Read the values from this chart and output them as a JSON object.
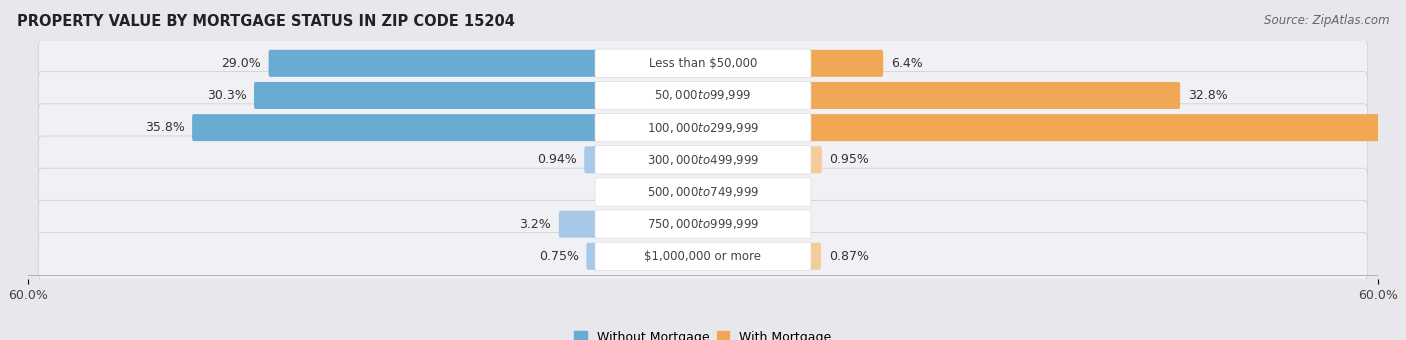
{
  "title": "PROPERTY VALUE BY MORTGAGE STATUS IN ZIP CODE 15204",
  "source": "Source: ZipAtlas.com",
  "categories": [
    "Less than $50,000",
    "$50,000 to $99,999",
    "$100,000 to $299,999",
    "$300,000 to $499,999",
    "$500,000 to $749,999",
    "$750,000 to $999,999",
    "$1,000,000 or more"
  ],
  "without_mortgage": [
    29.0,
    30.3,
    35.8,
    0.94,
    0.0,
    3.2,
    0.75
  ],
  "with_mortgage": [
    6.4,
    32.8,
    59.0,
    0.95,
    0.0,
    0.0,
    0.87
  ],
  "color_without_strong": "#6aabd2",
  "color_without_light": "#a8c8e8",
  "color_with_strong": "#f0a855",
  "color_with_light": "#f5cc99",
  "axis_limit": 60.0,
  "bg_color": "#e8e8ec",
  "row_bg_color": "#f0f0f5",
  "label_fontsize": 9.0,
  "title_fontsize": 10.5,
  "source_fontsize": 8.5,
  "cat_label_fontsize": 8.5,
  "threshold_strong": 5.0
}
